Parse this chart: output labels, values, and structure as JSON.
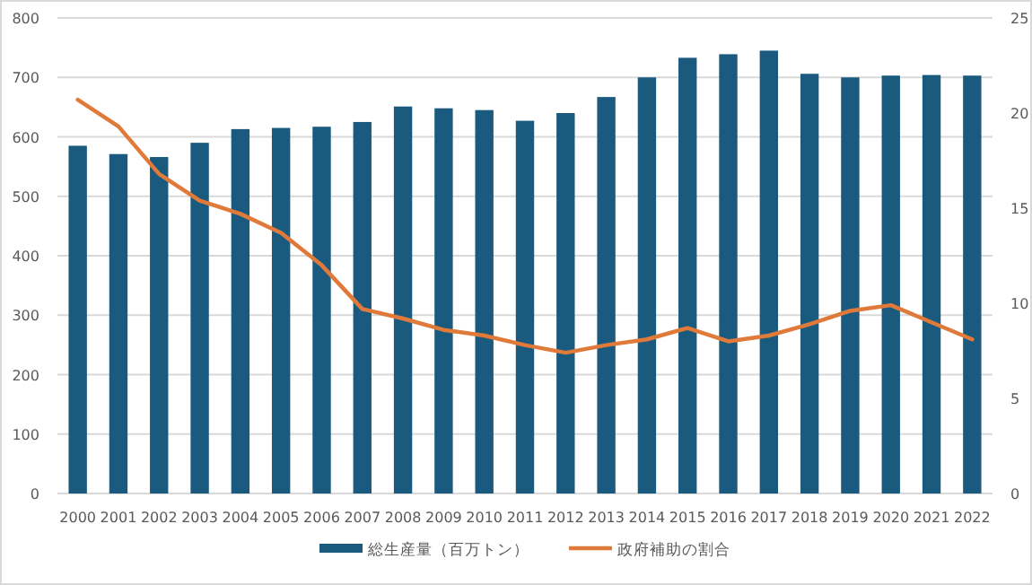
{
  "chart_data": {
    "type": "bar",
    "categories": [
      "2000",
      "2001",
      "2002",
      "2003",
      "2004",
      "2005",
      "2006",
      "2007",
      "2008",
      "2009",
      "2010",
      "2011",
      "2012",
      "2013",
      "2014",
      "2015",
      "2016",
      "2017",
      "2018",
      "2019",
      "2020",
      "2021",
      "2022"
    ],
    "series": [
      {
        "name": "総生産量（百万トン）",
        "color": "#1a5a7e",
        "values": [
          585,
          571,
          566,
          590,
          613,
          615,
          617,
          625,
          651,
          648,
          645,
          627,
          640,
          667,
          700,
          733,
          739,
          745,
          706,
          700,
          703,
          704,
          703
        ]
      },
      {
        "name": "政府補助の割合",
        "type": "line",
        "axis": "y2",
        "color": "#e07a3a",
        "values": [
          20.7,
          19.3,
          16.8,
          15.4,
          14.7,
          13.7,
          12.0,
          9.7,
          9.2,
          8.6,
          8.3,
          7.8,
          7.4,
          7.8,
          8.1,
          8.7,
          8.0,
          8.3,
          8.9,
          9.6,
          9.9,
          9.0,
          8.1
        ]
      }
    ],
    "ylim": [
      0,
      800
    ],
    "yticks": [
      0,
      100,
      200,
      300,
      400,
      500,
      600,
      700,
      800
    ],
    "y2lim": [
      0,
      25
    ],
    "y2ticks": [
      0,
      5,
      10,
      15,
      20,
      25
    ],
    "grid": "y",
    "legend": "bottom"
  }
}
